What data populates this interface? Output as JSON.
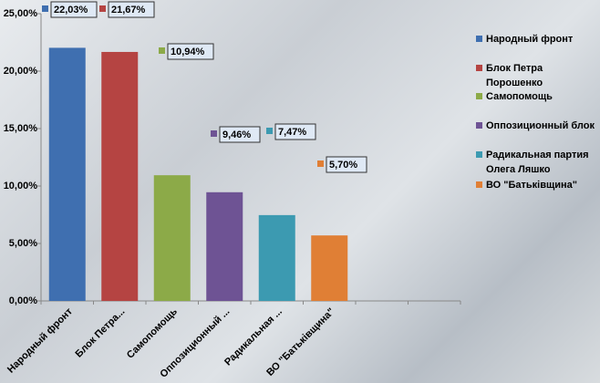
{
  "chart_data": {
    "type": "bar",
    "categories": [
      "Народный  фронт",
      "Блок Петра...",
      "Самопомощь",
      "Оппозиционный ...",
      "Радикальная ...",
      "ВО \"Батьківщина\"",
      null,
      null
    ],
    "values": [
      22.03,
      21.67,
      10.94,
      9.46,
      7.47,
      5.7,
      null,
      null
    ],
    "value_labels": [
      "22,03%",
      "21,67%",
      "10,94%",
      "9,46%",
      "7,47%",
      "5,70%",
      null,
      null
    ],
    "colors": [
      "#3f6fb0",
      "#b54442",
      "#8caa48",
      "#6e5394",
      "#3c9ab1",
      "#e07f35",
      null,
      null
    ],
    "legend": [
      "Народный фронт",
      "Блок Петра Порошенко",
      "Самопомощь",
      "Оппозиционный блок",
      "Радикальная  партия Олега Ляшко",
      "ВО \"Батьківщина\""
    ],
    "ylim": [
      0,
      25
    ],
    "yticks": [
      {
        "value": 0,
        "label": "0,00%"
      },
      {
        "value": 5,
        "label": "5,00%"
      },
      {
        "value": 10,
        "label": "10,00%"
      },
      {
        "value": 15,
        "label": "15,00%"
      },
      {
        "value": 20,
        "label": "20,00%"
      },
      {
        "value": 25,
        "label": "25,00%"
      }
    ],
    "grid": false
  }
}
